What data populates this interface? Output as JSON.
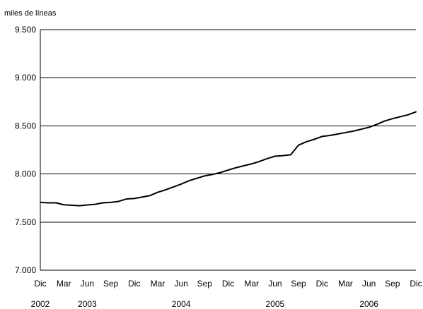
{
  "chart_data": {
    "type": "line",
    "ylabel": "miles de líneas",
    "ylim": [
      7000,
      9500
    ],
    "yticks": [
      7000,
      7500,
      8000,
      8500,
      9000,
      9500
    ],
    "ytick_labels": [
      "7.000",
      "7.500",
      "8.000",
      "8.500",
      "9.000",
      "9.500"
    ],
    "grid": true,
    "legend": "none",
    "colors": {
      "line": "#000000",
      "grid": "#000000",
      "axis": "#000000"
    },
    "x_month_labels": [
      "Dic",
      "Mar",
      "Jun",
      "Sep",
      "Dic",
      "Mar",
      "Jun",
      "Sep",
      "Dic",
      "Mar",
      "Jun",
      "Sep",
      "Dic",
      "Mar",
      "Jun",
      "Sep",
      "Dic"
    ],
    "x_year_labels": [
      {
        "label": "2002",
        "month_index": 0
      },
      {
        "label": "2003",
        "month_index": 6
      },
      {
        "label": "2004",
        "month_index": 18
      },
      {
        "label": "2005",
        "month_index": 30
      },
      {
        "label": "2006",
        "month_index": 42
      }
    ],
    "x": [
      "2002-12",
      "2003-01",
      "2003-02",
      "2003-03",
      "2003-04",
      "2003-05",
      "2003-06",
      "2003-07",
      "2003-08",
      "2003-09",
      "2003-10",
      "2003-11",
      "2003-12",
      "2004-01",
      "2004-02",
      "2004-03",
      "2004-04",
      "2004-05",
      "2004-06",
      "2004-07",
      "2004-08",
      "2004-09",
      "2004-10",
      "2004-11",
      "2004-12",
      "2005-01",
      "2005-02",
      "2005-03",
      "2005-04",
      "2005-05",
      "2005-06",
      "2005-07",
      "2005-08",
      "2005-09",
      "2005-10",
      "2005-11",
      "2005-12",
      "2006-01",
      "2006-02",
      "2006-03",
      "2006-04",
      "2006-05",
      "2006-06",
      "2006-07",
      "2006-08",
      "2006-09",
      "2006-10",
      "2006-11",
      "2006-12"
    ],
    "series": [
      {
        "values": [
          7705,
          7700,
          7700,
          7680,
          7675,
          7670,
          7678,
          7685,
          7700,
          7705,
          7715,
          7740,
          7745,
          7760,
          7775,
          7810,
          7835,
          7865,
          7895,
          7930,
          7955,
          7980,
          7995,
          8015,
          8040,
          8065,
          8085,
          8105,
          8130,
          8160,
          8185,
          8190,
          8200,
          8300,
          8335,
          8360,
          8390,
          8400,
          8415,
          8430,
          8445,
          8465,
          8485,
          8515,
          8550,
          8575,
          8595,
          8615,
          8645
        ]
      }
    ]
  }
}
